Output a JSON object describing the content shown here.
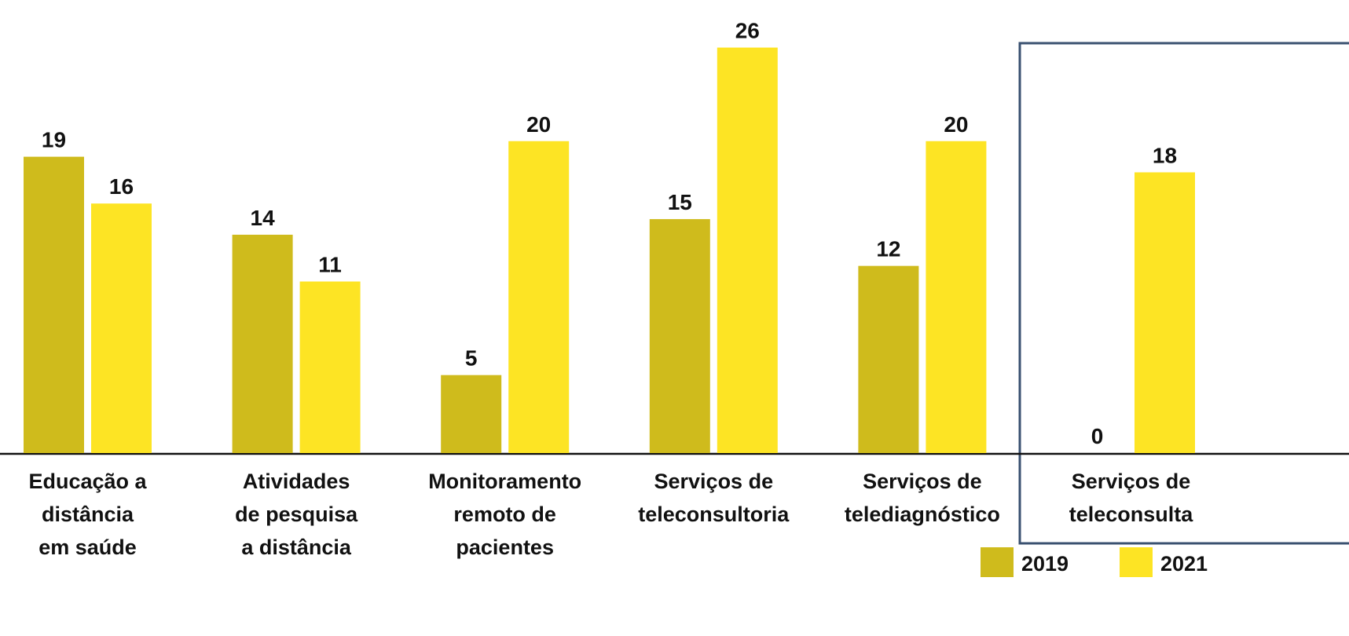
{
  "chart_data": {
    "type": "bar",
    "categories": [
      [
        "Educação a",
        "distância",
        "em saúde"
      ],
      [
        "Atividades",
        "de pesquisa",
        "a distância"
      ],
      [
        "Monitoramento",
        "remoto de",
        "pacientes"
      ],
      [
        "Serviços de",
        "teleconsultoria"
      ],
      [
        "Serviços de",
        "telediagnóstico"
      ],
      [
        "Serviços de",
        "teleconsulta"
      ]
    ],
    "series": [
      {
        "name": "2019",
        "color": "#cfbb1c",
        "values": [
          19,
          14,
          5,
          15,
          12,
          0
        ]
      },
      {
        "name": "2021",
        "color": "#fde424",
        "values": [
          16,
          11,
          20,
          26,
          20,
          18
        ]
      }
    ],
    "ylim": [
      0,
      29
    ],
    "legend": "bottom-right"
  }
}
